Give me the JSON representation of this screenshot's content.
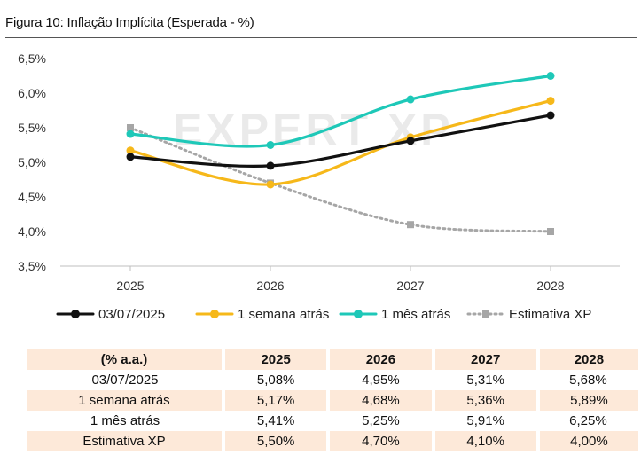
{
  "title": "Figura 10: Inflação Implícita (Esperada - %)",
  "watermark": "EXPERT XP",
  "colors": {
    "series": [
      "#111111",
      "#f6b81a",
      "#1ec8b8",
      "#a6a6a6"
    ],
    "table_shade": "#fde9d9"
  },
  "chart_data": {
    "type": "line",
    "title": "Figura 10: Inflação Implícita (Esperada - %)",
    "x": [
      "2025",
      "2026",
      "2027",
      "2028"
    ],
    "ylim": [
      3.5,
      6.5
    ],
    "yticks": [
      "3,5%",
      "4,0%",
      "4,5%",
      "5,0%",
      "5,5%",
      "6,0%",
      "6,5%"
    ],
    "ytick_values": [
      3.5,
      4.0,
      4.5,
      5.0,
      5.5,
      6.0,
      6.5
    ],
    "grid": false,
    "legend_position": "bottom",
    "series": [
      {
        "name": "03/07/2025",
        "values": [
          5.08,
          4.95,
          5.31,
          5.68
        ],
        "style": "solid"
      },
      {
        "name": "1 semana atrás",
        "values": [
          5.17,
          4.68,
          5.36,
          5.89
        ],
        "style": "solid"
      },
      {
        "name": "1 mês atrás",
        "values": [
          5.41,
          5.25,
          5.91,
          6.25
        ],
        "style": "solid"
      },
      {
        "name": "Estimativa XP",
        "values": [
          5.5,
          4.7,
          4.1,
          4.0
        ],
        "style": "dotted"
      }
    ]
  },
  "table": {
    "header": [
      "(% a.a.)",
      "2025",
      "2026",
      "2027",
      "2028"
    ],
    "rows": [
      [
        "03/07/2025",
        "5,08%",
        "4,95%",
        "5,31%",
        "5,68%"
      ],
      [
        "1 semana atrás",
        "5,17%",
        "4,68%",
        "5,36%",
        "5,89%"
      ],
      [
        "1 mês atrás",
        "5,41%",
        "5,25%",
        "5,91%",
        "6,25%"
      ],
      [
        "Estimativa XP",
        "5,50%",
        "4,70%",
        "4,10%",
        "4,00%"
      ]
    ]
  }
}
